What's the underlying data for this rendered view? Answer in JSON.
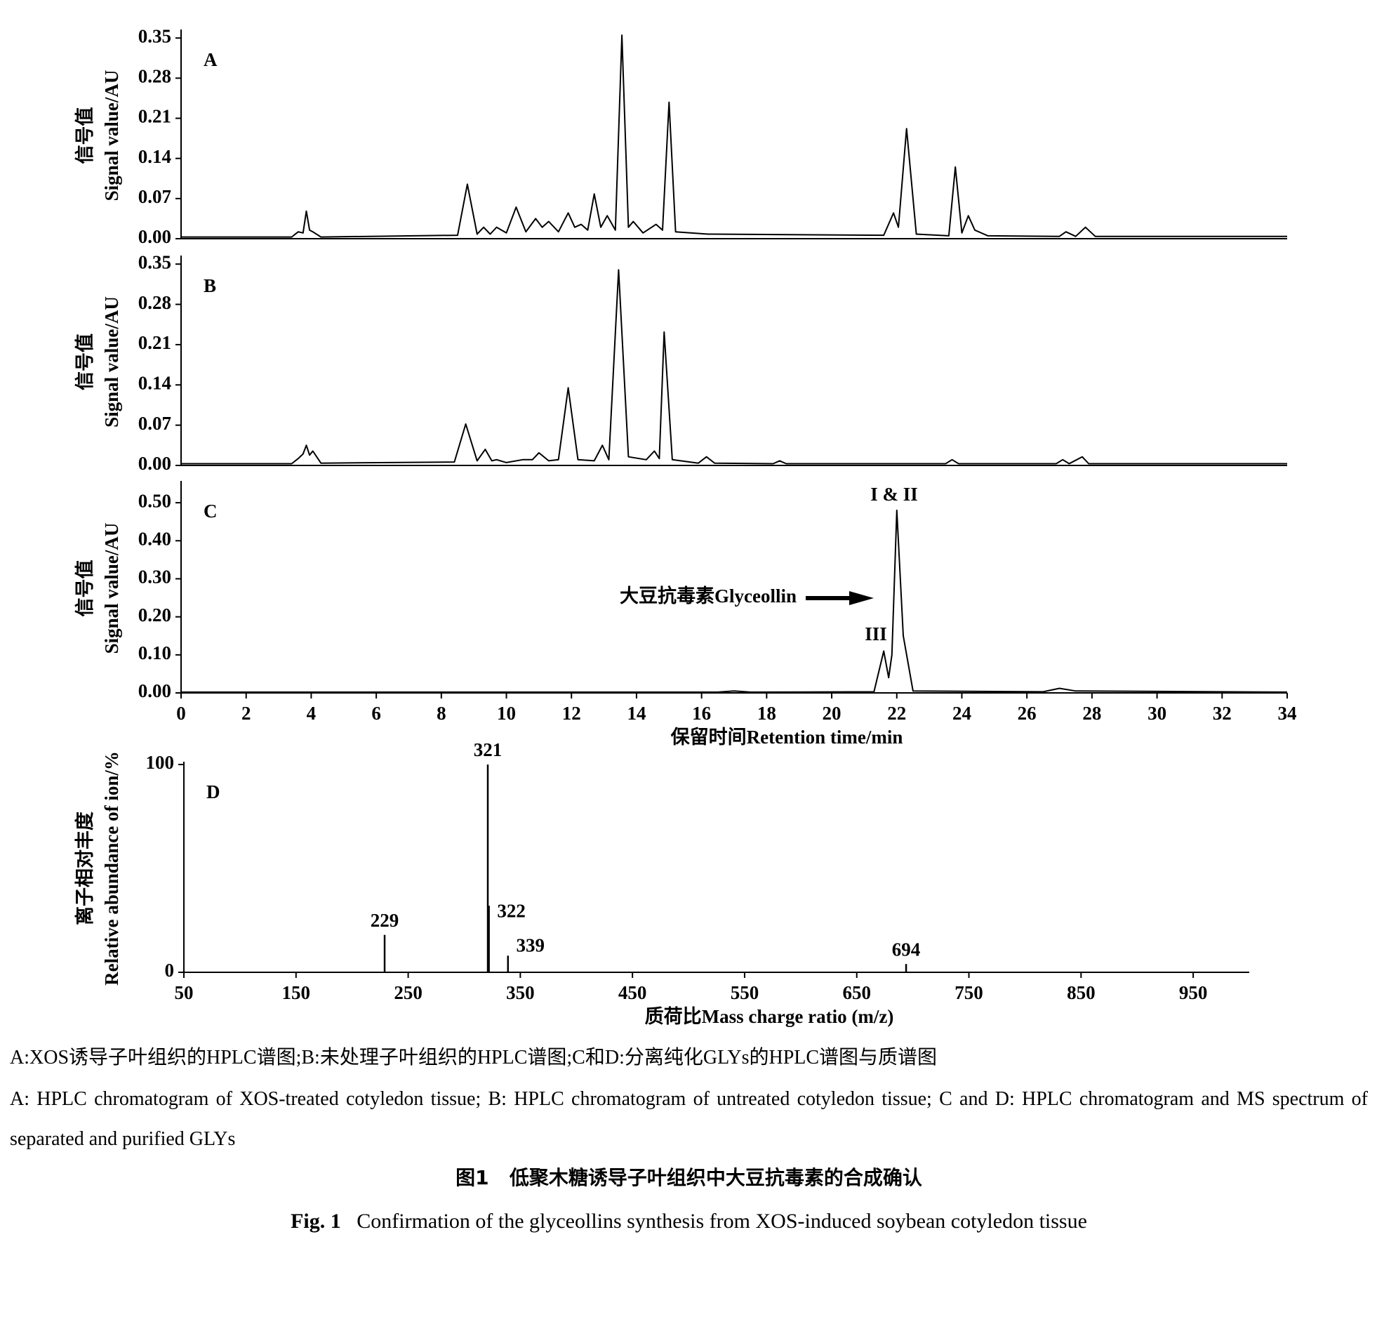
{
  "chart_data": [
    {
      "type": "line",
      "panel": "A",
      "ylabel": [
        "信号值",
        "Signal value/AU"
      ],
      "color": "#000000",
      "xlim": [
        0,
        34
      ],
      "ylim": [
        0,
        0.36
      ],
      "yticks": [
        {
          "value": 0,
          "label": "0.00"
        },
        0.07,
        0.14,
        0.21,
        0.28,
        0.35
      ],
      "x": [
        0,
        3.4,
        3.6,
        3.75,
        3.85,
        3.95,
        4.05,
        4.3,
        8.5,
        8.8,
        9.1,
        9.3,
        9.5,
        9.7,
        10.0,
        10.3,
        10.6,
        10.9,
        11.1,
        11.3,
        11.6,
        11.9,
        12.1,
        12.3,
        12.5,
        12.7,
        12.9,
        13.1,
        13.35,
        13.55,
        13.75,
        13.9,
        14.2,
        14.6,
        14.8,
        15.0,
        15.2,
        16.2,
        21.6,
        21.9,
        22.05,
        22.3,
        22.6,
        23.6,
        23.8,
        24.0,
        24.2,
        24.4,
        24.8,
        27.0,
        27.2,
        27.5,
        27.8,
        28.1,
        34
      ],
      "values": [
        0.003,
        0.003,
        0.012,
        0.01,
        0.048,
        0.015,
        0.012,
        0.003,
        0.006,
        0.095,
        0.008,
        0.02,
        0.008,
        0.02,
        0.01,
        0.055,
        0.012,
        0.035,
        0.02,
        0.03,
        0.012,
        0.045,
        0.02,
        0.025,
        0.015,
        0.078,
        0.02,
        0.04,
        0.015,
        0.355,
        0.02,
        0.03,
        0.01,
        0.025,
        0.015,
        0.238,
        0.012,
        0.008,
        0.006,
        0.045,
        0.02,
        0.192,
        0.008,
        0.005,
        0.125,
        0.01,
        0.04,
        0.015,
        0.005,
        0.004,
        0.012,
        0.004,
        0.02,
        0.004,
        0.004
      ]
    },
    {
      "type": "line",
      "panel": "B",
      "ylabel": [
        "信号值",
        "Signal value/AU"
      ],
      "color": "#000000",
      "xlim": [
        0,
        34
      ],
      "ylim": [
        0,
        0.36
      ],
      "yticks": [
        {
          "value": 0,
          "label": "0.00"
        },
        0.07,
        0.14,
        0.21,
        0.28,
        0.35
      ],
      "x": [
        0,
        3.4,
        3.6,
        3.75,
        3.85,
        3.95,
        4.05,
        4.3,
        8.4,
        8.75,
        9.1,
        9.35,
        9.55,
        9.7,
        10.0,
        10.5,
        10.8,
        11.0,
        11.3,
        11.6,
        11.9,
        12.2,
        12.7,
        12.95,
        13.15,
        13.45,
        13.75,
        14.3,
        14.55,
        14.7,
        14.85,
        15.1,
        15.9,
        16.15,
        16.4,
        18.2,
        18.4,
        18.6,
        23.5,
        23.7,
        23.9,
        26.9,
        27.1,
        27.3,
        27.7,
        27.9,
        34
      ],
      "values": [
        0.003,
        0.003,
        0.012,
        0.02,
        0.035,
        0.018,
        0.025,
        0.004,
        0.006,
        0.072,
        0.008,
        0.028,
        0.008,
        0.01,
        0.005,
        0.01,
        0.01,
        0.022,
        0.008,
        0.01,
        0.135,
        0.01,
        0.008,
        0.035,
        0.01,
        0.34,
        0.015,
        0.01,
        0.025,
        0.012,
        0.232,
        0.01,
        0.004,
        0.015,
        0.004,
        0.003,
        0.008,
        0.003,
        0.003,
        0.01,
        0.003,
        0.003,
        0.01,
        0.003,
        0.015,
        0.003,
        0.003
      ]
    },
    {
      "type": "line",
      "panel": "C",
      "ylabel": [
        "信号值",
        "Signal value/AU"
      ],
      "xlabel": "保留时间Retention time/min",
      "color": "#000000",
      "xlim": [
        0,
        34
      ],
      "ylim": [
        0,
        0.55
      ],
      "xticks": [
        0,
        2,
        4,
        6,
        8,
        10,
        12,
        14,
        16,
        18,
        20,
        22,
        24,
        26,
        28,
        30,
        32,
        34
      ],
      "yticks": [
        {
          "value": 0,
          "label": "0.00"
        },
        {
          "value": 0.1,
          "label": "0.10"
        },
        {
          "value": 0.2,
          "label": "0.20"
        },
        {
          "value": 0.3,
          "label": "0.30"
        },
        {
          "value": 0.4,
          "label": "0.40"
        },
        {
          "value": 0.5,
          "label": "0.50"
        }
      ],
      "annotations": [
        "I & II",
        "III",
        "大豆抗毒素Glyceollin"
      ],
      "x": [
        0,
        16.5,
        17,
        17.5,
        21.3,
        21.6,
        21.75,
        21.85,
        22.0,
        22.2,
        22.5,
        26.5,
        27.0,
        27.5,
        34
      ],
      "values": [
        0.002,
        0.002,
        0.005,
        0.002,
        0.003,
        0.11,
        0.04,
        0.1,
        0.48,
        0.15,
        0.005,
        0.003,
        0.012,
        0.005,
        0.002
      ]
    },
    {
      "type": "stem",
      "panel": "D",
      "ylabel": [
        "离子相对丰度",
        "Relative abundance of ion/%"
      ],
      "xlabel": "质荷比Mass charge ratio (m/z)",
      "color": "#000000",
      "xlim": [
        50,
        1000
      ],
      "ylim": [
        0,
        100
      ],
      "xticks": [
        50,
        150,
        250,
        350,
        450,
        550,
        650,
        750,
        850,
        950
      ],
      "yticks": [
        0,
        100
      ],
      "x": [
        229,
        321,
        322,
        339,
        694
      ],
      "values": [
        18,
        100,
        32,
        8,
        4
      ]
    }
  ],
  "caption": {
    "line_cn": "A:XOS诱导子叶组织的HPLC谱图;B:未处理子叶组织的HPLC谱图;C和D:分离纯化GLYs的HPLC谱图与质谱图",
    "line_en": "A: HPLC chromatogram of XOS-treated cotyledon tissue; B: HPLC chromatogram of untreated cotyledon tissue; C and D: HPLC chromatogram and MS spectrum of separated and purified GLYs",
    "fig_cn": "图1",
    "title_cn": "低聚木糖诱导子叶组织中大豆抗毒素的合成确认",
    "fig_en": "Fig. 1",
    "title_en": "Confirmation of the glyceollins synthesis from XOS-induced soybean cotyledon tissue"
  }
}
